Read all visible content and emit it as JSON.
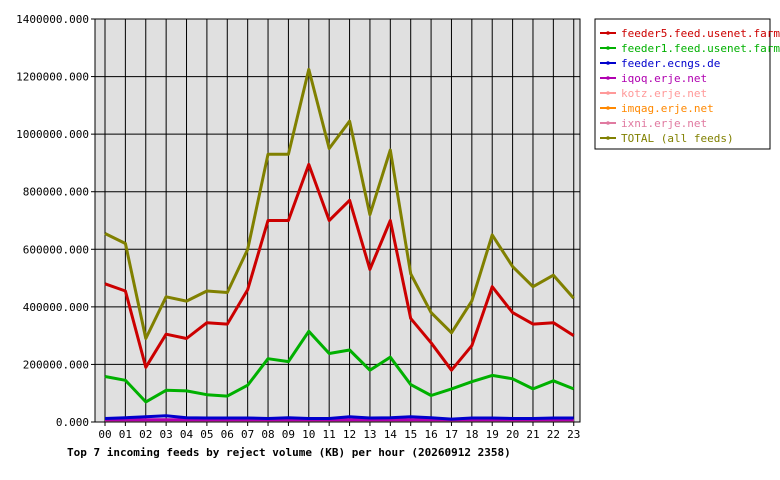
{
  "chart_data": {
    "type": "line",
    "title": "Top 7 incoming feeds by reject volume (KB) per hour (20260912 2358)",
    "x": [
      "00",
      "01",
      "02",
      "03",
      "04",
      "05",
      "06",
      "07",
      "08",
      "09",
      "10",
      "11",
      "12",
      "13",
      "14",
      "15",
      "16",
      "17",
      "18",
      "19",
      "20",
      "21",
      "22",
      "23"
    ],
    "y_ticks": [
      "0.000",
      "200000.000",
      "400000.000",
      "600000.000",
      "800000.000",
      "1000000.000",
      "1200000.000",
      "1400000.000"
    ],
    "ylim": [
      0,
      1400000
    ],
    "grid": true,
    "legend_position": "top-right",
    "series": [
      {
        "name": "feeder5.feed.usenet.farm",
        "color": "#cc0000",
        "values": [
          480000,
          455000,
          190000,
          305000,
          290000,
          345000,
          340000,
          460000,
          700000,
          700000,
          895000,
          700000,
          770000,
          530000,
          700000,
          360000,
          275000,
          180000,
          265000,
          470000,
          380000,
          340000,
          345000,
          300000
        ]
      },
      {
        "name": "feeder1.feed.usenet.farm",
        "color": "#00b000",
        "values": [
          158000,
          145000,
          70000,
          110000,
          108000,
          95000,
          90000,
          128000,
          220000,
          210000,
          315000,
          238000,
          250000,
          180000,
          225000,
          130000,
          92000,
          115000,
          140000,
          162000,
          150000,
          115000,
          143000,
          115000
        ]
      },
      {
        "name": "feeder.ecngs.de",
        "color": "#0000cc",
        "values": [
          12000,
          15000,
          18000,
          22000,
          15000,
          14000,
          14000,
          14000,
          12000,
          15000,
          12000,
          12000,
          18000,
          14000,
          15000,
          18000,
          15000,
          10000,
          14000,
          14000,
          12000,
          12000,
          14000,
          14000
        ]
      },
      {
        "name": "iqoq.erje.net",
        "color": "#b000b0",
        "values": [
          8000,
          8000,
          8000,
          8000,
          8000,
          8000,
          8000,
          8000,
          8000,
          8000,
          8000,
          8000,
          8000,
          8000,
          8000,
          8000,
          8000,
          8000,
          8000,
          8000,
          8000,
          8000,
          8000,
          8000
        ]
      },
      {
        "name": "kotz.erje.net",
        "color": "#ff9999",
        "values": [
          6000,
          6000,
          6000,
          6000,
          6000,
          6000,
          6000,
          6000,
          6000,
          6000,
          6000,
          6000,
          6000,
          6000,
          6000,
          6000,
          6000,
          6000,
          6000,
          6000,
          6000,
          6000,
          6000,
          6000
        ]
      },
      {
        "name": "imqag.erje.net",
        "color": "#ff8800",
        "values": [
          5000,
          5000,
          5000,
          5000,
          5000,
          5000,
          5000,
          5000,
          5000,
          5000,
          5000,
          5000,
          5000,
          5000,
          5000,
          5000,
          5000,
          5000,
          5000,
          5000,
          5000,
          5000,
          5000,
          5000
        ]
      },
      {
        "name": "ixni.erje.net",
        "color": "#e07aa0",
        "values": [
          4000,
          4000,
          4000,
          4000,
          4000,
          4000,
          4000,
          4000,
          4000,
          4000,
          4000,
          4000,
          4000,
          4000,
          4000,
          4000,
          4000,
          4000,
          4000,
          4000,
          4000,
          4000,
          4000,
          4000
        ]
      },
      {
        "name": "TOTAL (all feeds)",
        "color": "#808000",
        "values": [
          655000,
          620000,
          290000,
          435000,
          420000,
          455000,
          450000,
          600000,
          930000,
          930000,
          1225000,
          950000,
          1045000,
          720000,
          945000,
          515000,
          380000,
          310000,
          420000,
          650000,
          540000,
          470000,
          510000,
          430000
        ]
      }
    ]
  }
}
